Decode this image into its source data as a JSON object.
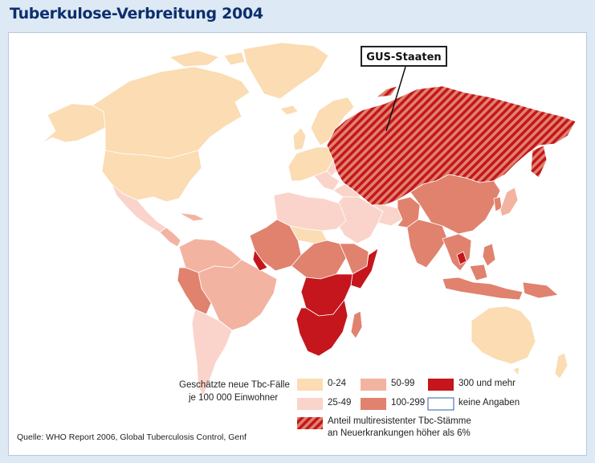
{
  "title": "Tuberkulose-Verbreitung 2004",
  "annotation": {
    "gus_label": "GUS-Staaten"
  },
  "legend": {
    "heading_line1": "Geschätzte neue Tbc-Fälle",
    "heading_line2": "je 100 000 Einwohner",
    "classes": [
      {
        "label": "0-24",
        "color": "#fbdcb3"
      },
      {
        "label": "25-49",
        "color": "#fad4cb"
      },
      {
        "label": "50-99",
        "color": "#f3b3a1"
      },
      {
        "label": "100-299",
        "color": "#e0826e"
      },
      {
        "label": "300 und mehr",
        "color": "#c4161c"
      },
      {
        "label": "keine Angaben",
        "color": "#ffffff"
      }
    ],
    "mdr_line1": "Anteil multiresistenter Tbc-Stämme",
    "mdr_line2": "an Neuerkrankungen höher als 6%"
  },
  "colors": {
    "ocean": "#ffffff",
    "border": "#ffffff",
    "mdr_base": "#e0826e",
    "mdr_stripe": "#c4161c",
    "title": "#0c2f6c"
  },
  "source": "Quelle: WHO Report 2006, Global Tuberculosis Control, Genf"
}
